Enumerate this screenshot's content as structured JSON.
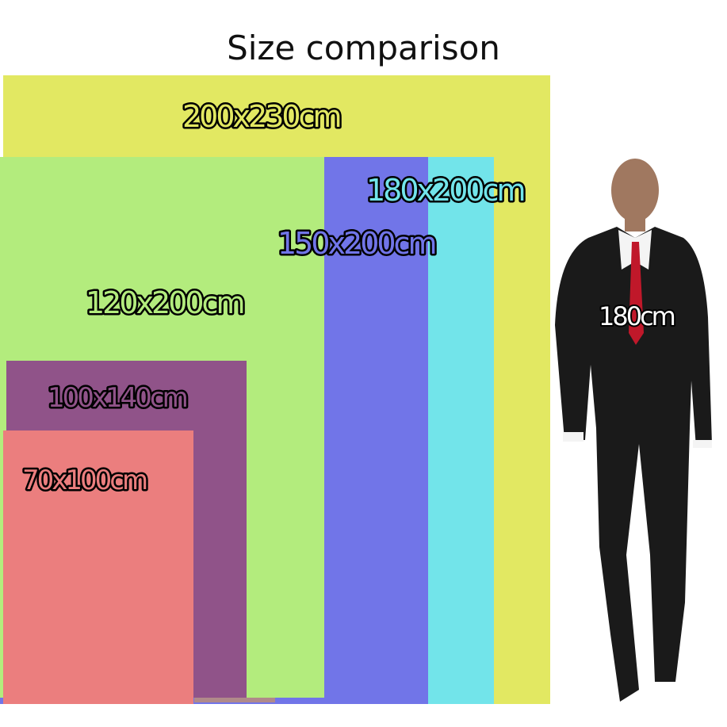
{
  "title": "Size comparison",
  "colors": {
    "s200x230": "#e2e862",
    "s180x200": "#72e4ea",
    "s150x200": "#7175e8",
    "s120x200": "#b3ec7d",
    "s100x140": "#905389",
    "s70x100": "#eb7e7e"
  },
  "labels": {
    "s200x230": "200x230cm",
    "s180x200": "180x200cm",
    "s150x200": "150x200cm",
    "s120x200": "120x200cm",
    "s100x140": "100x140cm",
    "s70x100": "70x100cm",
    "person": "180cm"
  },
  "icons": {
    "person": "person-in-suit-figure"
  }
}
